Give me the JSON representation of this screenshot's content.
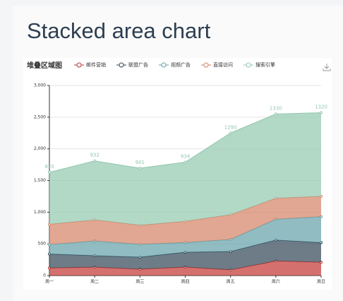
{
  "heading": "Stacked area chart",
  "chart_data": {
    "type": "stacked-area",
    "title": "堆叠区域图",
    "categories": [
      "周一",
      "周二",
      "周三",
      "周四",
      "周五",
      "周六",
      "周日"
    ],
    "series": [
      {
        "name": "邮件营销",
        "color": "#c23531",
        "values": [
          120,
          132,
          101,
          134,
          90,
          230,
          210
        ]
      },
      {
        "name": "联盟广告",
        "color": "#2f4554",
        "values": [
          220,
          182,
          191,
          234,
          290,
          330,
          310
        ]
      },
      {
        "name": "视频广告",
        "color": "#61a0a8",
        "values": [
          150,
          232,
          201,
          154,
          190,
          330,
          410
        ]
      },
      {
        "name": "直接访问",
        "color": "#d48265",
        "values": [
          320,
          332,
          301,
          334,
          390,
          330,
          320
        ]
      },
      {
        "name": "搜索引擎",
        "color": "#91c7ae",
        "values": [
          820,
          932,
          901,
          934,
          1290,
          1330,
          1320
        ]
      }
    ],
    "ylim": [
      0,
      3000
    ],
    "yticks": [
      0,
      500,
      {
        "value": 1000,
        "label": "1,000"
      },
      {
        "value": 1500,
        "label": "1,500"
      },
      {
        "value": 2000,
        "label": "2,000"
      },
      {
        "value": 2500,
        "label": "2,500"
      },
      {
        "value": 3000,
        "label": "3,000"
      }
    ],
    "grid": true,
    "legend": "top"
  }
}
